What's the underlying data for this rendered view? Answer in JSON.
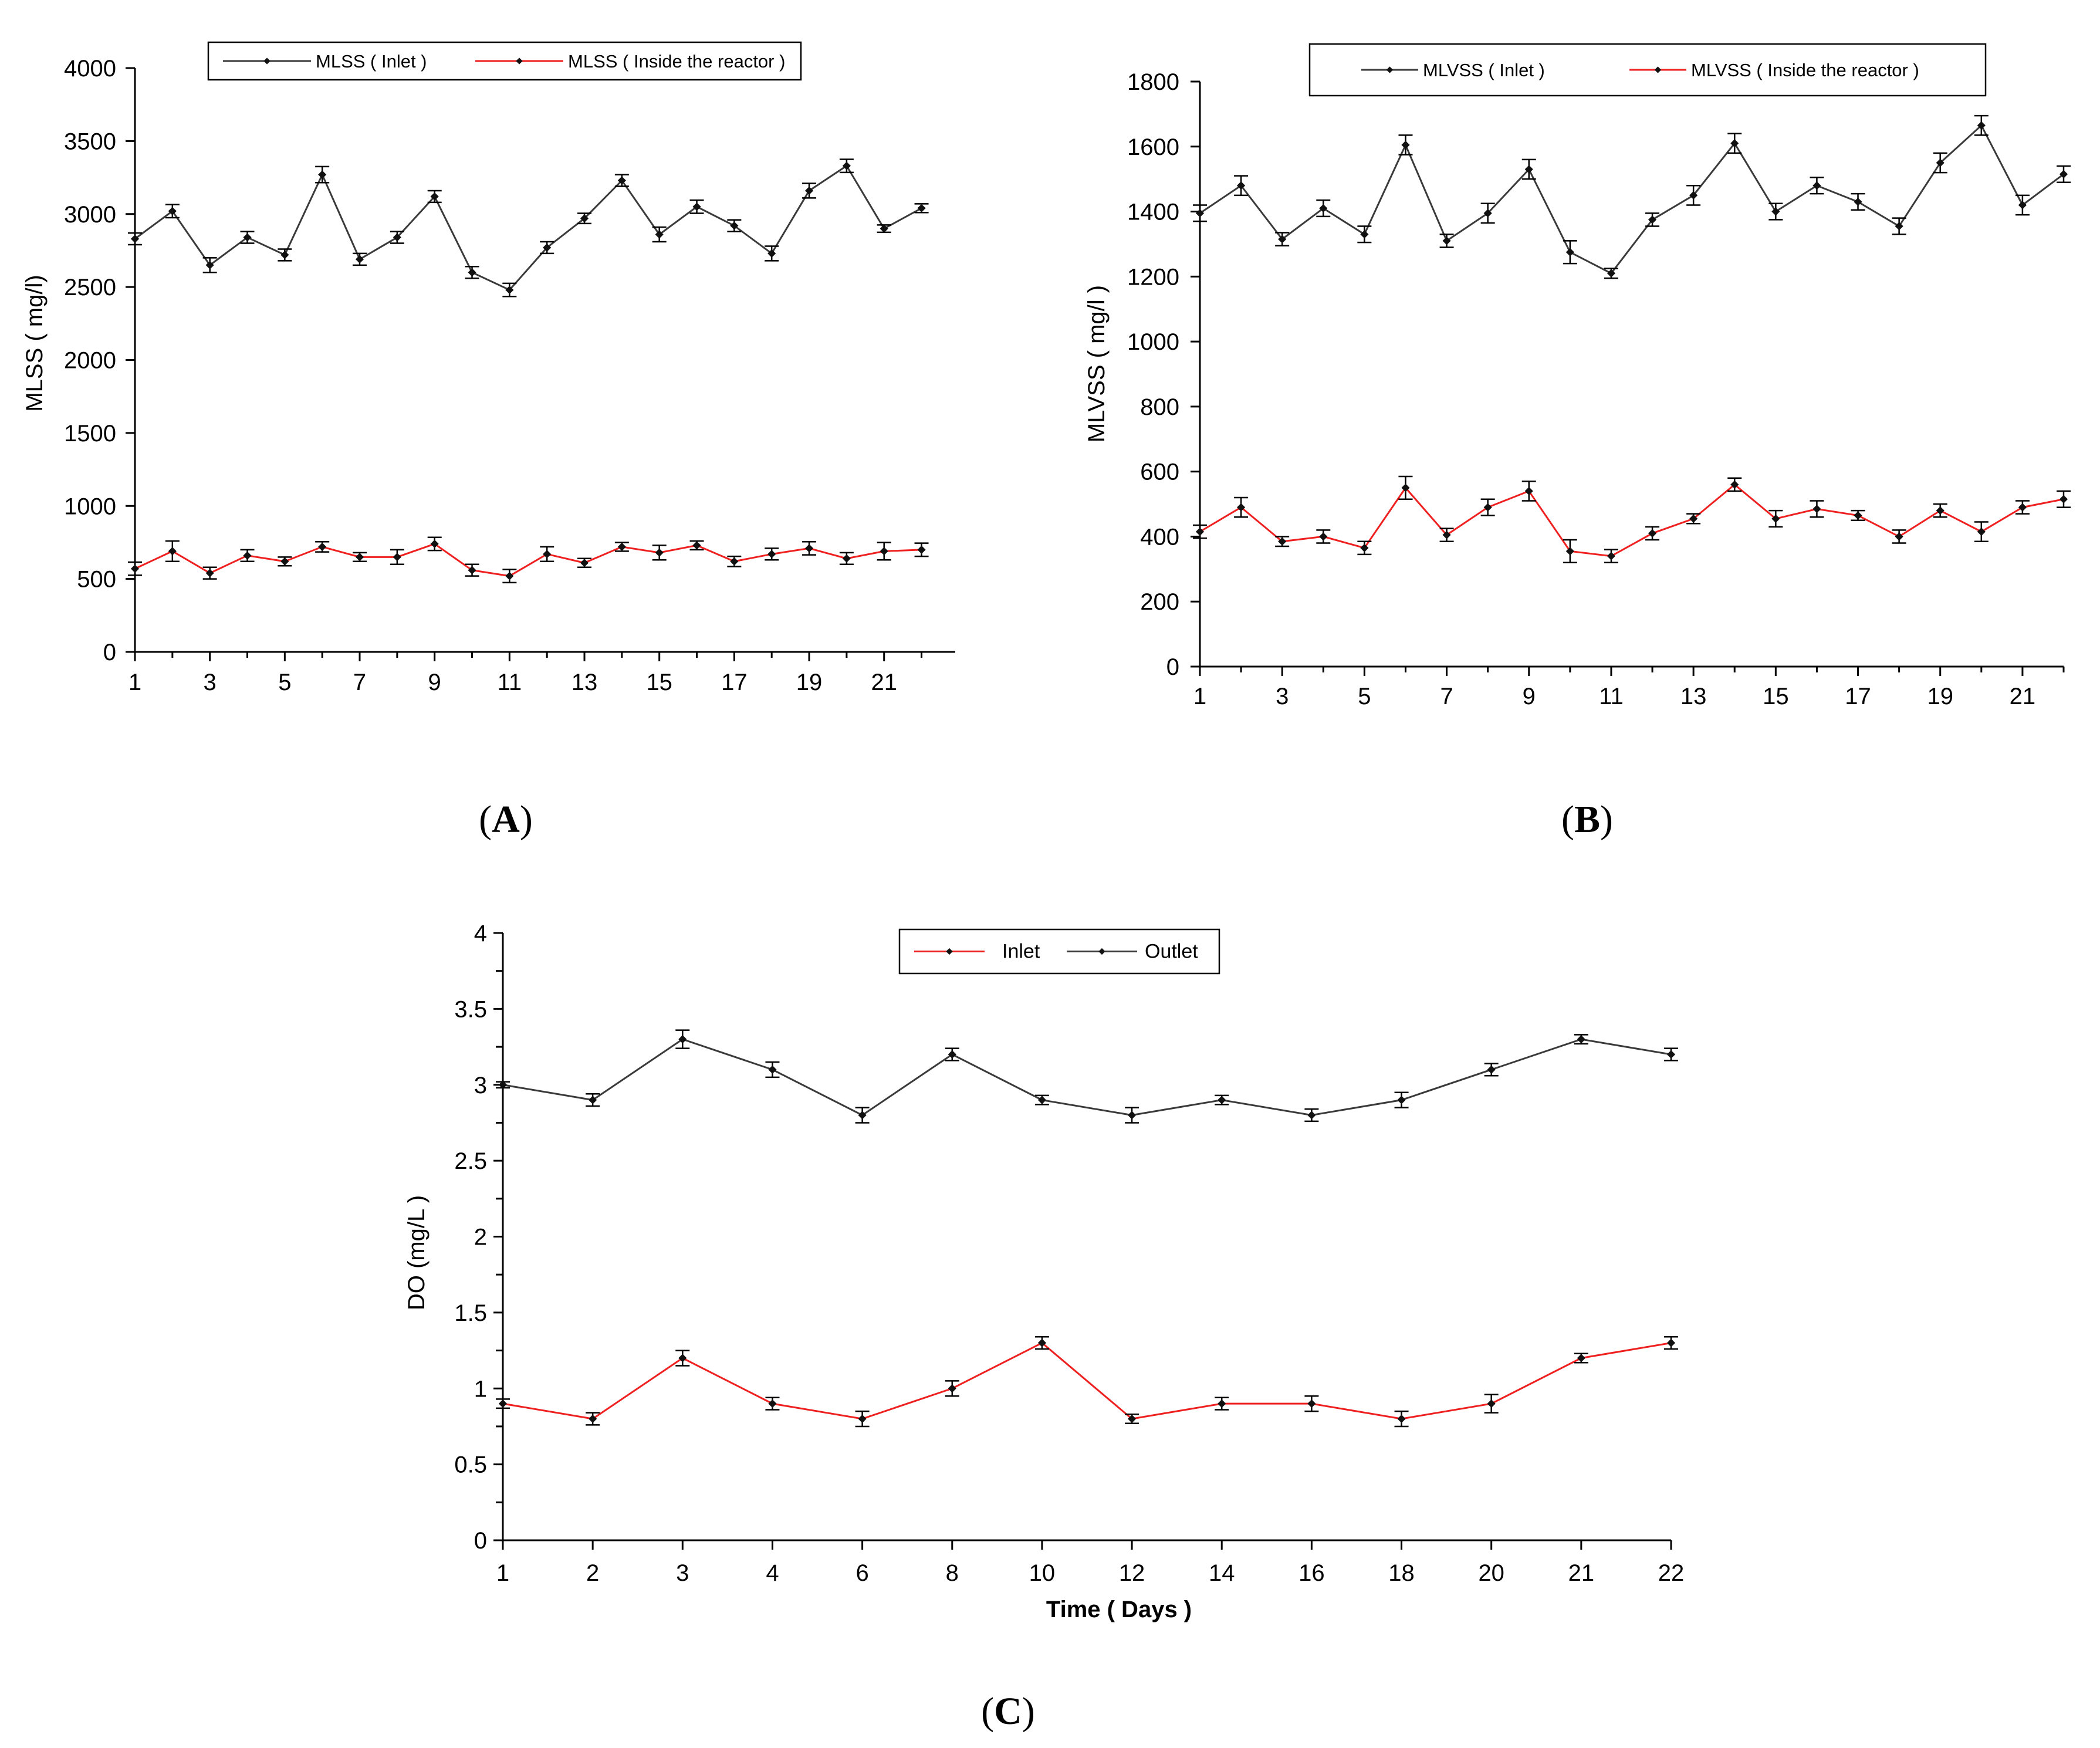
{
  "figure": {
    "panel_labels": [
      {
        "open": "(",
        "letter": "A",
        "close": ")"
      },
      {
        "open": "(",
        "letter": "B",
        "close": ")"
      },
      {
        "open": "(",
        "letter": "C",
        "close": ")"
      }
    ]
  },
  "colors": {
    "black_series": "#3a3a3a",
    "red_series": "#ee2020",
    "axis": "#000000"
  },
  "chart_data": [
    {
      "type": "line",
      "panel": "A",
      "title": "",
      "xlabel": "",
      "ylabel": "MLSS ( mg/l)",
      "x": [
        1,
        2,
        3,
        4,
        5,
        6,
        7,
        8,
        9,
        10,
        11,
        12,
        13,
        14,
        15,
        16,
        17,
        18,
        19,
        20,
        21,
        22
      ],
      "xticks": [
        1,
        3,
        5,
        7,
        9,
        11,
        13,
        15,
        17,
        19,
        21
      ],
      "xtick_labels": [
        "1",
        "3",
        "5",
        "7",
        "9",
        "11",
        "13",
        "15",
        "17",
        "19",
        "21"
      ],
      "yticks": [
        0,
        500,
        1000,
        1500,
        2000,
        2500,
        3000,
        3500,
        4000
      ],
      "ytick_labels": [
        "0",
        "500",
        "1000",
        "1500",
        "2000",
        "2500",
        "3000",
        "3500",
        "4000"
      ],
      "ylim": [
        0,
        4000
      ],
      "legend_position": "top",
      "series": [
        {
          "name": "MLSS ( Inlet )",
          "color": "black",
          "values": [
            2830,
            3020,
            2650,
            2840,
            2720,
            3270,
            2690,
            2840,
            3120,
            2600,
            2480,
            2770,
            2970,
            3230,
            2860,
            3050,
            2920,
            2730,
            3160,
            3330,
            2900,
            3040
          ],
          "errors": [
            40,
            45,
            50,
            40,
            40,
            55,
            40,
            40,
            40,
            40,
            45,
            40,
            35,
            40,
            50,
            45,
            40,
            50,
            50,
            45,
            25,
            30
          ]
        },
        {
          "name": "MLSS ( Inside the reactor )",
          "color": "red",
          "values": [
            570,
            690,
            540,
            660,
            620,
            720,
            650,
            650,
            740,
            560,
            520,
            670,
            610,
            720,
            680,
            730,
            620,
            670,
            710,
            640,
            690,
            700
          ],
          "errors": [
            45,
            70,
            40,
            40,
            30,
            35,
            30,
            50,
            45,
            40,
            45,
            50,
            30,
            30,
            50,
            30,
            35,
            40,
            45,
            40,
            60,
            45
          ]
        }
      ]
    },
    {
      "type": "line",
      "panel": "B",
      "title": "",
      "xlabel": "",
      "ylabel": "MLVSS ( mg/l )",
      "x": [
        1,
        2,
        3,
        4,
        5,
        6,
        7,
        8,
        9,
        10,
        11,
        12,
        13,
        14,
        15,
        16,
        17,
        18,
        19,
        20,
        21,
        22
      ],
      "xticks": [
        1,
        3,
        5,
        7,
        9,
        11,
        13,
        15,
        17,
        19,
        21
      ],
      "xtick_labels": [
        "1",
        "3",
        "5",
        "7",
        "9",
        "11",
        "13",
        "15",
        "17",
        "19",
        "21"
      ],
      "yticks": [
        0,
        200,
        400,
        600,
        800,
        1000,
        1200,
        1400,
        1600,
        1800
      ],
      "ytick_labels": [
        "0",
        "200",
        "400",
        "600",
        "800",
        "1000",
        "1200",
        "1400",
        "1600",
        "1800"
      ],
      "ylim": [
        0,
        1800
      ],
      "legend_position": "top",
      "series": [
        {
          "name": "MLVSS ( Inlet )",
          "color": "black",
          "values": [
            1395,
            1480,
            1315,
            1410,
            1330,
            1605,
            1310,
            1395,
            1530,
            1275,
            1210,
            1375,
            1450,
            1610,
            1400,
            1480,
            1430,
            1355,
            1550,
            1665,
            1420,
            1515
          ],
          "errors": [
            25,
            30,
            20,
            25,
            25,
            30,
            20,
            30,
            30,
            35,
            15,
            20,
            30,
            30,
            25,
            25,
            25,
            25,
            30,
            30,
            30,
            25
          ]
        },
        {
          "name": "MLVSS ( Inside the reactor )",
          "color": "red",
          "values": [
            415,
            490,
            385,
            400,
            365,
            550,
            405,
            490,
            540,
            355,
            340,
            410,
            455,
            560,
            455,
            485,
            465,
            400,
            480,
            415,
            490,
            515
          ],
          "errors": [
            20,
            30,
            15,
            20,
            20,
            35,
            20,
            25,
            30,
            35,
            20,
            20,
            15,
            20,
            25,
            25,
            15,
            20,
            20,
            30,
            20,
            25
          ]
        }
      ]
    },
    {
      "type": "line",
      "panel": "C",
      "title": "",
      "xlabel": "Time ( Days )",
      "ylabel": "DO (mg/L )",
      "categories": [
        "1",
        "2",
        "3",
        "4",
        "6",
        "8",
        "10",
        "12",
        "14",
        "16",
        "18",
        "20",
        "21",
        "22"
      ],
      "yticks": [
        0,
        0.5,
        1,
        1.5,
        2,
        2.5,
        3,
        3.5,
        4
      ],
      "ytick_labels": [
        "0",
        "0.5",
        "1",
        "1.5",
        "2",
        "2.5",
        "3",
        "3.5",
        "4"
      ],
      "ylim": [
        0,
        4
      ],
      "legend_position": "top",
      "series": [
        {
          "name": "Inlet",
          "color": "red",
          "values": [
            0.9,
            0.8,
            1.2,
            0.9,
            0.8,
            1.0,
            1.3,
            0.8,
            0.9,
            0.9,
            0.8,
            0.9,
            1.2,
            1.3
          ],
          "errors": [
            0.03,
            0.04,
            0.05,
            0.04,
            0.05,
            0.05,
            0.04,
            0.03,
            0.04,
            0.05,
            0.05,
            0.06,
            0.03,
            0.04
          ]
        },
        {
          "name": "Outlet",
          "color": "black",
          "values": [
            3.0,
            2.9,
            3.3,
            3.1,
            2.8,
            3.2,
            2.9,
            2.8,
            2.9,
            2.8,
            2.9,
            3.1,
            3.3,
            3.2
          ],
          "errors": [
            0.02,
            0.04,
            0.06,
            0.05,
            0.05,
            0.04,
            0.03,
            0.05,
            0.03,
            0.04,
            0.05,
            0.04,
            0.03,
            0.04
          ]
        }
      ]
    }
  ]
}
